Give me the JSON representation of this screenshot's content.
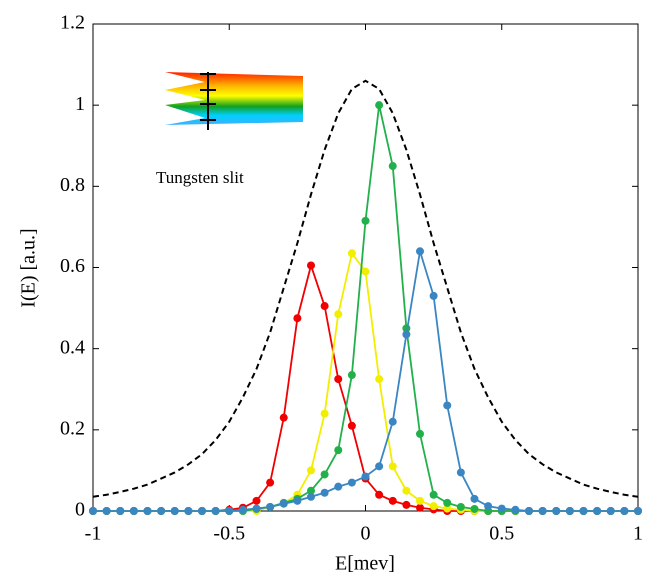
{
  "chart_data": {
    "type": "line",
    "xlabel": "E[mev]",
    "ylabel": "I(E) [a.u.]",
    "annotation": "Tungsten slit",
    "xlim": [
      -1,
      1
    ],
    "ylim": [
      0,
      1.2
    ],
    "xticks": [
      -1,
      -0.5,
      0,
      0.5,
      1
    ],
    "yticks": [
      0,
      0.2,
      0.4,
      0.6,
      0.8,
      1,
      1.2
    ],
    "x": [
      -1,
      -0.95,
      -0.9,
      -0.85,
      -0.8,
      -0.75,
      -0.7,
      -0.65,
      -0.6,
      -0.55,
      -0.5,
      -0.45,
      -0.4,
      -0.35,
      -0.3,
      -0.25,
      -0.2,
      -0.15,
      -0.1,
      -0.05,
      0,
      0.05,
      0.1,
      0.15,
      0.2,
      0.25,
      0.3,
      0.35,
      0.4,
      0.45,
      0.5,
      0.55,
      0.6,
      0.65,
      0.7,
      0.75,
      0.8,
      0.85,
      0.9,
      0.95,
      1
    ],
    "series": [
      {
        "color": "#000000",
        "style": "dashed",
        "markers": false,
        "values": [
          0.035,
          0.04,
          0.047,
          0.055,
          0.065,
          0.08,
          0.095,
          0.115,
          0.14,
          0.175,
          0.22,
          0.28,
          0.35,
          0.44,
          0.55,
          0.66,
          0.78,
          0.89,
          0.98,
          1.04,
          1.06,
          1.04,
          0.98,
          0.89,
          0.78,
          0.66,
          0.55,
          0.44,
          0.35,
          0.28,
          0.22,
          0.175,
          0.14,
          0.115,
          0.095,
          0.08,
          0.065,
          0.055,
          0.047,
          0.04,
          0.035
        ]
      },
      {
        "color": "#f00000",
        "style": "solid",
        "markers": true,
        "values": [
          0,
          0,
          0,
          0,
          0,
          0,
          0,
          0,
          0,
          0,
          0.003,
          0.008,
          0.025,
          0.07,
          0.23,
          0.475,
          0.605,
          0.505,
          0.325,
          0.21,
          0.08,
          0.04,
          0.025,
          0.015,
          0.008,
          0.004,
          0,
          0,
          0,
          0,
          0,
          0,
          0,
          0,
          0,
          0,
          0,
          0,
          0,
          0,
          0
        ]
      },
      {
        "color": "#f2ee00",
        "style": "solid",
        "markers": true,
        "values": [
          0,
          0,
          0,
          0,
          0,
          0,
          0,
          0,
          0,
          0,
          0,
          0,
          0,
          0.01,
          0.02,
          0.04,
          0.1,
          0.24,
          0.485,
          0.635,
          0.59,
          0.325,
          0.11,
          0.05,
          0.025,
          0.012,
          0.006,
          0.003,
          0,
          0,
          0,
          0,
          0,
          0,
          0,
          0,
          0,
          0,
          0,
          0,
          0
        ]
      },
      {
        "color": "#22b04b",
        "style": "solid",
        "markers": true,
        "values": [
          0,
          0,
          0,
          0,
          0,
          0,
          0,
          0,
          0,
          0,
          0,
          0,
          0.005,
          0.01,
          0.02,
          0.03,
          0.05,
          0.09,
          0.15,
          0.335,
          0.715,
          1,
          0.85,
          0.45,
          0.19,
          0.04,
          0.02,
          0.01,
          0.005,
          0,
          0,
          0,
          0,
          0,
          0,
          0,
          0,
          0,
          0,
          0,
          0
        ]
      },
      {
        "color": "#3a86c2",
        "style": "solid",
        "markers": true,
        "values": [
          0,
          0,
          0,
          0,
          0,
          0,
          0,
          0,
          0,
          0,
          0,
          0.003,
          0.006,
          0.01,
          0.018,
          0.025,
          0.035,
          0.045,
          0.06,
          0.07,
          0.085,
          0.11,
          0.22,
          0.435,
          0.64,
          0.53,
          0.26,
          0.095,
          0.03,
          0.012,
          0.006,
          0.003,
          0,
          0,
          0,
          0,
          0,
          0,
          0,
          0,
          0
        ]
      }
    ]
  }
}
